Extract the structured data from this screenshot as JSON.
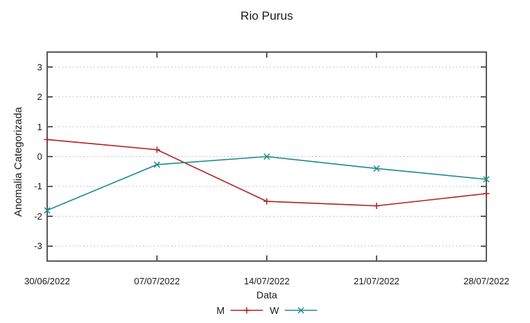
{
  "chart_data": {
    "type": "line",
    "title": "Rio Purus",
    "xlabel": "Data",
    "ylabel": "Anomalia Categorizada",
    "categories": [
      "30/06/2022",
      "07/07/2022",
      "14/07/2022",
      "21/07/2022",
      "28/07/2022"
    ],
    "series": [
      {
        "name": "M",
        "color": "#b22222",
        "marker": "plus",
        "values": [
          0.57,
          0.23,
          -1.5,
          -1.65,
          -1.24
        ]
      },
      {
        "name": "W",
        "color": "#1f8b8b",
        "marker": "cross",
        "values": [
          -1.8,
          -0.27,
          0.0,
          -0.4,
          -0.76
        ]
      }
    ],
    "ylim": [
      -3.5,
      3.5
    ],
    "yticks": [
      -3,
      -2,
      -1,
      0,
      1,
      2,
      3
    ],
    "grid": "horizontal-dotted",
    "legend_position": "bottom-center"
  },
  "colors": {
    "background": "#ffffff",
    "border": "#5a5a5a",
    "tick": "#1a1a1a",
    "grid": "#c6c6c6",
    "text": "#1a1a1a",
    "series_m": "#b22222",
    "series_w": "#1f8b8b"
  }
}
